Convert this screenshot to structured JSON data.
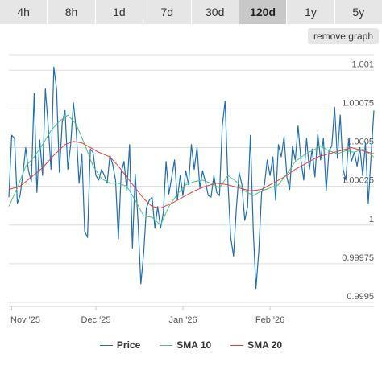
{
  "tabs": [
    {
      "label": "4h",
      "active": false
    },
    {
      "label": "8h",
      "active": false
    },
    {
      "label": "1d",
      "active": false
    },
    {
      "label": "7d",
      "active": false
    },
    {
      "label": "30d",
      "active": false
    },
    {
      "label": "120d",
      "active": true
    },
    {
      "label": "1y",
      "active": false
    },
    {
      "label": "5y",
      "active": false
    }
  ],
  "remove_graph_label": "remove graph",
  "chart_data": {
    "type": "line",
    "title": "",
    "xlabel": "",
    "ylabel": "",
    "x_range": [
      "2025-10-31",
      "2026-03-10"
    ],
    "ylim": [
      0.9995,
      1.0011
    ],
    "y_ticks": [
      {
        "value": 1.001,
        "label": "1.001"
      },
      {
        "value": 1.00075,
        "label": "1.00075"
      },
      {
        "value": 1.0005,
        "label": "1.0005"
      },
      {
        "value": 1.00025,
        "label": "1.00025"
      },
      {
        "value": 1.0,
        "label": "1"
      },
      {
        "value": 0.99975,
        "label": "0.99975"
      },
      {
        "value": 0.9995,
        "label": "0.9995"
      }
    ],
    "x_ticks": [
      {
        "date": "2025-11-01",
        "label": "Nov '25"
      },
      {
        "date": "2025-12-01",
        "label": "Dec '25"
      },
      {
        "date": "2026-01-01",
        "label": "Jan '26"
      },
      {
        "date": "2026-02-01",
        "label": "Feb '26"
      }
    ],
    "grid": "horizontal",
    "legend_position": "bottom",
    "series": [
      {
        "name": "Price",
        "color": "#1f6fb4",
        "points": [
          [
            "2025-10-31",
            1.00018
          ],
          [
            "2025-11-01",
            1.00058
          ],
          [
            "2025-11-02",
            1.00056
          ],
          [
            "2025-11-03",
            1.00014
          ],
          [
            "2025-11-04",
            1.00019
          ],
          [
            "2025-11-05",
            1.00033
          ],
          [
            "2025-11-06",
            1.0005
          ],
          [
            "2025-11-07",
            1.00035
          ],
          [
            "2025-11-08",
            1.00028
          ],
          [
            "2025-11-09",
            1.00085
          ],
          [
            "2025-11-10",
            1.00021
          ],
          [
            "2025-11-11",
            1.00055
          ],
          [
            "2025-11-12",
            1.00032
          ],
          [
            "2025-11-13",
            1.00088
          ],
          [
            "2025-11-14",
            1.00064
          ],
          [
            "2025-11-15",
            1.00036
          ],
          [
            "2025-11-16",
            1.00102
          ],
          [
            "2025-11-17",
            1.00088
          ],
          [
            "2025-11-18",
            1.00034
          ],
          [
            "2025-11-19",
            1.00066
          ],
          [
            "2025-11-20",
            1.00074
          ],
          [
            "2025-11-21",
            1.00036
          ],
          [
            "2025-11-22",
            1.00052
          ],
          [
            "2025-11-23",
            1.00079
          ],
          [
            "2025-11-24",
            1.00061
          ],
          [
            "2025-11-25",
            1.00027
          ],
          [
            "2025-11-26",
            1.00046
          ],
          [
            "2025-11-27",
            0.99996
          ],
          [
            "2025-11-28",
            0.99992
          ],
          [
            "2025-11-29",
            1.00049
          ],
          [
            "2025-11-30",
            1.00047
          ],
          [
            "2025-12-01",
            1.00032
          ],
          [
            "2025-12-02",
            1.00029
          ],
          [
            "2025-12-03",
            1.00036
          ],
          [
            "2025-12-04",
            1.00032
          ],
          [
            "2025-12-05",
            1.00027
          ],
          [
            "2025-12-06",
            1.00045
          ],
          [
            "2025-12-07",
            1.00039
          ],
          [
            "2025-12-08",
            1.00029
          ],
          [
            "2025-12-09",
            0.99991
          ],
          [
            "2025-12-10",
            1.00034
          ],
          [
            "2025-12-11",
            1.00041
          ],
          [
            "2025-12-12",
            1.00022
          ],
          [
            "2025-12-13",
            1.00052
          ],
          [
            "2025-12-14",
            0.99985
          ],
          [
            "2025-12-15",
            1.00033
          ],
          [
            "2025-12-16",
            1.00002
          ],
          [
            "2025-12-17",
            0.99962
          ],
          [
            "2025-12-18",
            0.99982
          ],
          [
            "2025-12-19",
            1.00011
          ],
          [
            "2025-12-20",
            1.00016
          ],
          [
            "2025-12-21",
            1.00018
          ],
          [
            "2025-12-22",
            0.99998
          ],
          [
            "2025-12-23",
            1.00012
          ],
          [
            "2025-12-24",
            0.99998
          ],
          [
            "2025-12-25",
            1.00008
          ],
          [
            "2025-12-26",
            1.00041
          ],
          [
            "2025-12-27",
            1.0002
          ],
          [
            "2025-12-28",
            1.00031
          ],
          [
            "2025-12-29",
            1.00042
          ],
          [
            "2025-12-30",
            1.00016
          ],
          [
            "2025-12-31",
            1.00032
          ],
          [
            "2026-01-01",
            1.00019
          ],
          [
            "2026-01-02",
            1.00035
          ],
          [
            "2026-01-03",
            1.00026
          ],
          [
            "2026-01-04",
            1.00052
          ],
          [
            "2026-01-05",
            1.00036
          ],
          [
            "2026-01-06",
            1.0005
          ],
          [
            "2026-01-07",
            1.00024
          ],
          [
            "2026-01-08",
            1.00035
          ],
          [
            "2026-01-09",
            1.00028
          ],
          [
            "2026-01-10",
            1.00019
          ],
          [
            "2026-01-11",
            1.00018
          ],
          [
            "2026-01-12",
            1.00032
          ],
          [
            "2026-01-13",
            1.00021
          ],
          [
            "2026-01-14",
            1.00019
          ],
          [
            "2026-01-15",
            1.00064
          ],
          [
            "2026-01-16",
            1.0008
          ],
          [
            "2026-01-17",
            1.00028
          ],
          [
            "2026-01-18",
            0.99992
          ],
          [
            "2026-01-19",
            0.9998
          ],
          [
            "2026-01-20",
            1.00011
          ],
          [
            "2026-01-21",
            1.00034
          ],
          [
            "2026-01-22",
            1.00026
          ],
          [
            "2026-01-23",
            1.00003
          ],
          [
            "2026-01-24",
            1.00012
          ],
          [
            "2026-01-25",
            1.00058
          ],
          [
            "2026-01-26",
            0.99997
          ],
          [
            "2026-01-27",
            0.99959
          ],
          [
            "2026-01-28",
            0.99983
          ],
          [
            "2026-01-29",
            1.00021
          ],
          [
            "2026-01-30",
            1.00026
          ],
          [
            "2026-01-31",
            1.00042
          ],
          [
            "2026-02-01",
            1.00032
          ],
          [
            "2026-02-02",
            1.00044
          ],
          [
            "2026-02-03",
            1.00016
          ],
          [
            "2026-02-04",
            1.00052
          ],
          [
            "2026-02-05",
            1.00044
          ],
          [
            "2026-02-06",
            1.00057
          ],
          [
            "2026-02-07",
            1.00031
          ],
          [
            "2026-02-08",
            1.00023
          ],
          [
            "2026-02-09",
            1.00051
          ],
          [
            "2026-02-10",
            1.00042
          ],
          [
            "2026-02-11",
            1.00064
          ],
          [
            "2026-02-12",
            1.00042
          ],
          [
            "2026-02-13",
            1.00029
          ],
          [
            "2026-02-14",
            1.00056
          ],
          [
            "2026-02-15",
            1.00036
          ],
          [
            "2026-02-16",
            1.00049
          ],
          [
            "2026-02-17",
            1.00031
          ],
          [
            "2026-02-18",
            1.00059
          ],
          [
            "2026-02-19",
            1.00042
          ],
          [
            "2026-02-20",
            1.00056
          ],
          [
            "2026-02-21",
            1.00022
          ],
          [
            "2026-02-22",
            1.00048
          ],
          [
            "2026-02-23",
            1.00051
          ],
          [
            "2026-02-24",
            1.00076
          ],
          [
            "2026-02-25",
            1.00043
          ],
          [
            "2026-02-26",
            1.00071
          ],
          [
            "2026-02-27",
            1.00036
          ],
          [
            "2026-02-28",
            1.00029
          ],
          [
            "2026-03-01",
            1.00055
          ],
          [
            "2026-03-02",
            1.00041
          ],
          [
            "2026-03-03",
            1.00047
          ],
          [
            "2026-03-04",
            1.00038
          ],
          [
            "2026-03-05",
            1.0005
          ],
          [
            "2026-03-06",
            1.00032
          ],
          [
            "2026-03-07",
            1.00053
          ],
          [
            "2026-03-08",
            1.00014
          ],
          [
            "2026-03-09",
            1.00045
          ],
          [
            "2026-03-10",
            1.00074
          ]
        ]
      },
      {
        "name": "SMA 10",
        "color": "#4cc47a",
        "points": [
          [
            "2025-10-31",
            1.00012
          ],
          [
            "2025-11-03",
            1.00024
          ],
          [
            "2025-11-06",
            1.00038
          ],
          [
            "2025-11-09",
            1.00044
          ],
          [
            "2025-11-12",
            1.00052
          ],
          [
            "2025-11-15",
            1.00061
          ],
          [
            "2025-11-18",
            1.00067
          ],
          [
            "2025-11-21",
            1.00071
          ],
          [
            "2025-11-24",
            1.00065
          ],
          [
            "2025-11-27",
            1.00052
          ],
          [
            "2025-11-30",
            1.00038
          ],
          [
            "2025-12-03",
            1.0003
          ],
          [
            "2025-12-06",
            1.00027
          ],
          [
            "2025-12-09",
            1.00027
          ],
          [
            "2025-12-12",
            1.00025
          ],
          [
            "2025-12-15",
            1.00016
          ],
          [
            "2025-12-18",
            1.00006
          ],
          [
            "2025-12-21",
            1.00005
          ],
          [
            "2025-12-24",
            1.0
          ],
          [
            "2025-12-27",
            1.00012
          ],
          [
            "2025-12-30",
            1.0002
          ],
          [
            "2026-01-02",
            1.00026
          ],
          [
            "2026-01-05",
            1.00028
          ],
          [
            "2026-01-08",
            1.00029
          ],
          [
            "2026-01-11",
            1.00027
          ],
          [
            "2026-01-14",
            1.00024
          ],
          [
            "2026-01-17",
            1.00032
          ],
          [
            "2026-01-20",
            1.00028
          ],
          [
            "2026-01-23",
            1.00022
          ],
          [
            "2026-01-26",
            1.00019
          ],
          [
            "2026-01-29",
            1.00022
          ],
          [
            "2026-02-01",
            1.00024
          ],
          [
            "2026-02-04",
            1.00026
          ],
          [
            "2026-02-07",
            1.00033
          ],
          [
            "2026-02-10",
            1.00041
          ],
          [
            "2026-02-13",
            1.00045
          ],
          [
            "2026-02-16",
            1.00048
          ],
          [
            "2026-02-19",
            1.00051
          ],
          [
            "2026-02-22",
            1.00048
          ],
          [
            "2026-02-25",
            1.00046
          ],
          [
            "2026-02-28",
            1.00048
          ],
          [
            "2026-03-03",
            1.00047
          ],
          [
            "2026-03-06",
            1.00049
          ],
          [
            "2026-03-10",
            1.00044
          ]
        ]
      },
      {
        "name": "SMA 20",
        "color": "#e0433a",
        "points": [
          [
            "2025-10-31",
            1.00023
          ],
          [
            "2025-11-04",
            1.00025
          ],
          [
            "2025-11-08",
            1.00031
          ],
          [
            "2025-11-12",
            1.00037
          ],
          [
            "2025-11-16",
            1.00045
          ],
          [
            "2025-11-20",
            1.00052
          ],
          [
            "2025-11-23",
            1.00054
          ],
          [
            "2025-11-26",
            1.00053
          ],
          [
            "2025-11-29",
            1.0005
          ],
          [
            "2025-12-02",
            1.00047
          ],
          [
            "2025-12-06",
            1.00044
          ],
          [
            "2025-12-09",
            1.00038
          ],
          [
            "2025-12-12",
            1.00031
          ],
          [
            "2025-12-15",
            1.00024
          ],
          [
            "2025-12-18",
            1.00017
          ],
          [
            "2025-12-21",
            1.00012
          ],
          [
            "2025-12-24",
            1.00011
          ],
          [
            "2025-12-28",
            1.00014
          ],
          [
            "2026-01-01",
            1.00018
          ],
          [
            "2026-01-05",
            1.00022
          ],
          [
            "2026-01-09",
            1.00025
          ],
          [
            "2026-01-13",
            1.00027
          ],
          [
            "2026-01-17",
            1.00026
          ],
          [
            "2026-01-21",
            1.00024
          ],
          [
            "2026-01-25",
            1.00022
          ],
          [
            "2026-01-29",
            1.00023
          ],
          [
            "2026-02-02",
            1.00027
          ],
          [
            "2026-02-06",
            1.00031
          ],
          [
            "2026-02-10",
            1.00036
          ],
          [
            "2026-02-14",
            1.0004
          ],
          [
            "2026-02-18",
            1.00044
          ],
          [
            "2026-02-22",
            1.00046
          ],
          [
            "2026-02-26",
            1.00048
          ],
          [
            "2026-03-02",
            1.0005
          ],
          [
            "2026-03-06",
            1.00048
          ],
          [
            "2026-03-10",
            1.00046
          ]
        ]
      }
    ]
  }
}
